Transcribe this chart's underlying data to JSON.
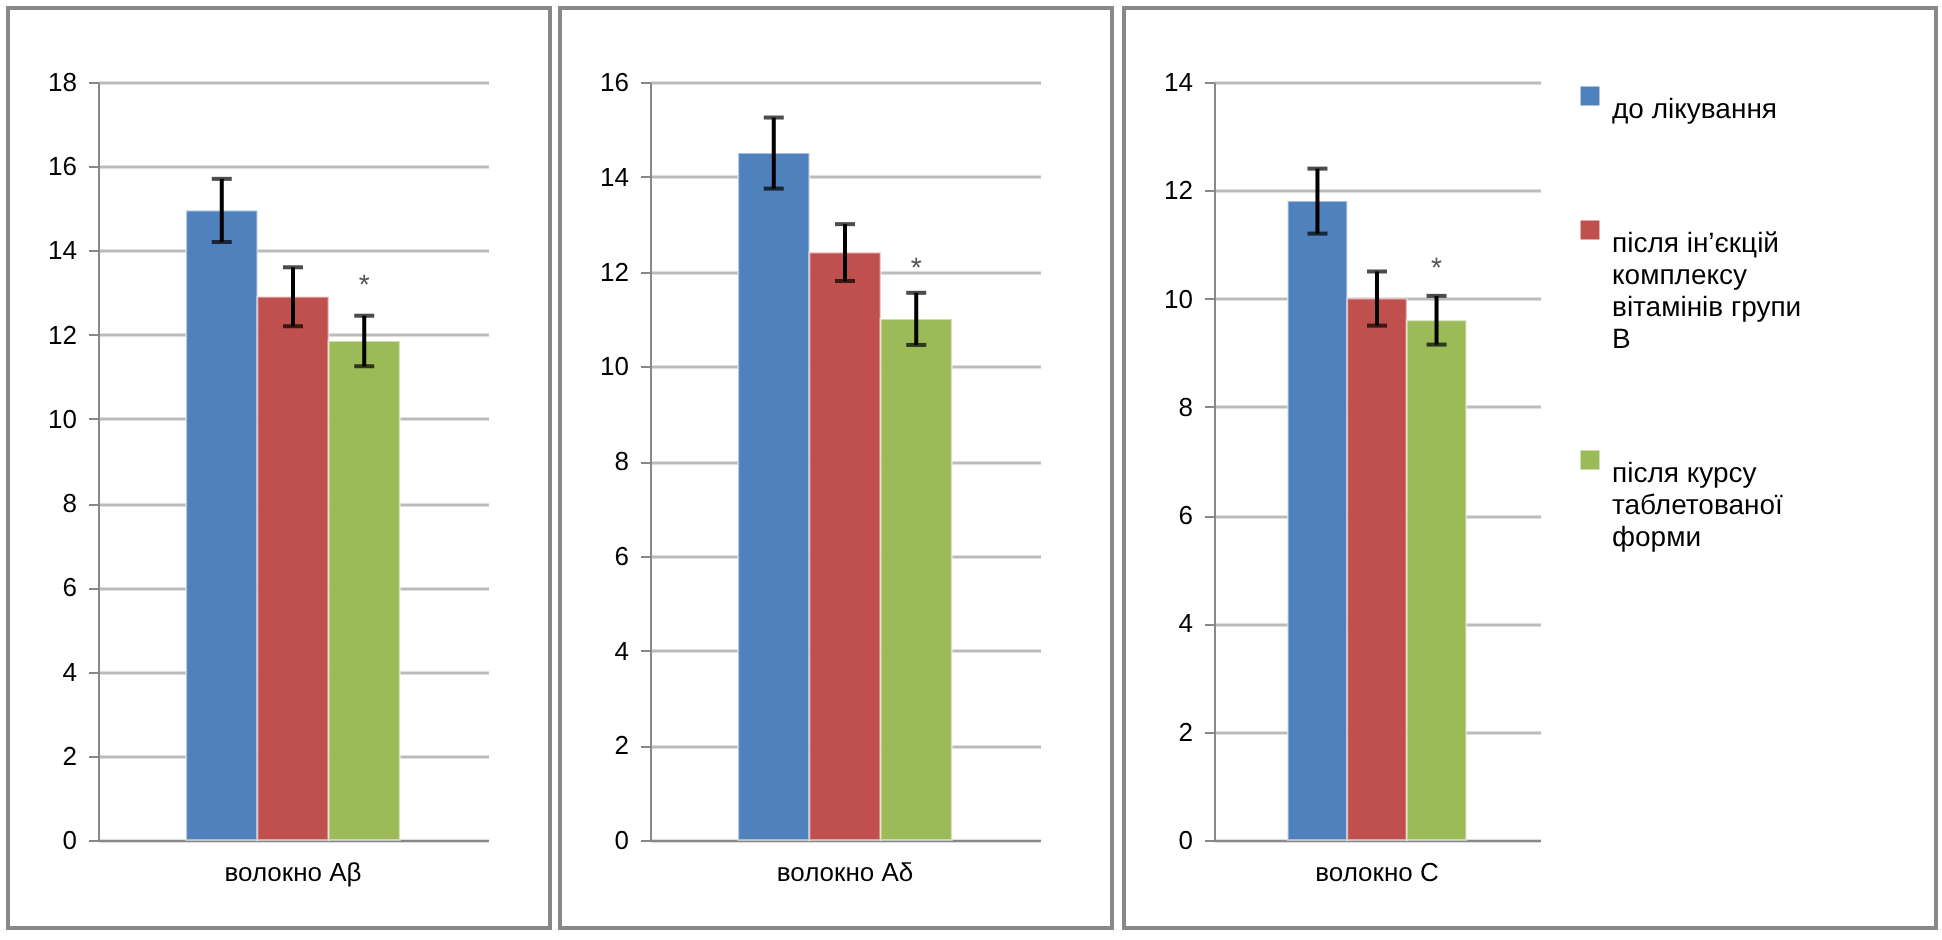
{
  "chart_data": [
    {
      "type": "bar",
      "categories": [
        "волокно Aβ"
      ],
      "ylim": [
        0,
        18
      ],
      "yticks": [
        0,
        2,
        4,
        6,
        8,
        10,
        12,
        14,
        16,
        18
      ],
      "grid": "y",
      "series": [
        {
          "color": "#4f81bd",
          "values": [
            14.95
          ],
          "errors": [
            0.75
          ]
        },
        {
          "color": "#c0504d",
          "values": [
            12.9
          ],
          "errors": [
            0.7
          ]
        },
        {
          "color": "#9bbb59",
          "values": [
            11.85
          ],
          "errors": [
            0.6
          ]
        }
      ],
      "annotations": [
        {
          "text": "*",
          "x": "волокно Aβ",
          "y": 13.15
        }
      ]
    },
    {
      "type": "bar",
      "categories": [
        "волокно Aδ"
      ],
      "ylim": [
        0,
        16
      ],
      "yticks": [
        0,
        2,
        4,
        6,
        8,
        10,
        12,
        14,
        16
      ],
      "grid": "y",
      "series": [
        {
          "color": "#4f81bd",
          "values": [
            14.5
          ],
          "errors": [
            0.75
          ]
        },
        {
          "color": "#c0504d",
          "values": [
            12.4
          ],
          "errors": [
            0.6
          ]
        },
        {
          "color": "#9bbb59",
          "values": [
            11.0
          ],
          "errors": [
            0.55
          ]
        }
      ],
      "annotations": [
        {
          "text": "*",
          "x": "волокно Aδ",
          "y": 12.05
        }
      ]
    },
    {
      "type": "bar",
      "categories": [
        "волокно C"
      ],
      "ylim": [
        0,
        14
      ],
      "yticks": [
        0,
        2,
        4,
        6,
        8,
        10,
        12,
        14
      ],
      "grid": "y",
      "legend": "right",
      "series": [
        {
          "name": "до лікування",
          "color": "#4f81bd",
          "values": [
            11.8
          ],
          "errors": [
            0.6
          ]
        },
        {
          "name": "після ін’єкцій комплексу вітамінів групи В",
          "color": "#c0504d",
          "values": [
            10.0
          ],
          "errors": [
            0.5
          ]
        },
        {
          "name": "після курсу таблетованої форми",
          "color": "#9bbb59",
          "values": [
            9.6
          ],
          "errors": [
            0.45
          ]
        }
      ],
      "annotations": [
        {
          "text": "*",
          "x": "волокно C",
          "y": 10.55
        }
      ]
    }
  ]
}
